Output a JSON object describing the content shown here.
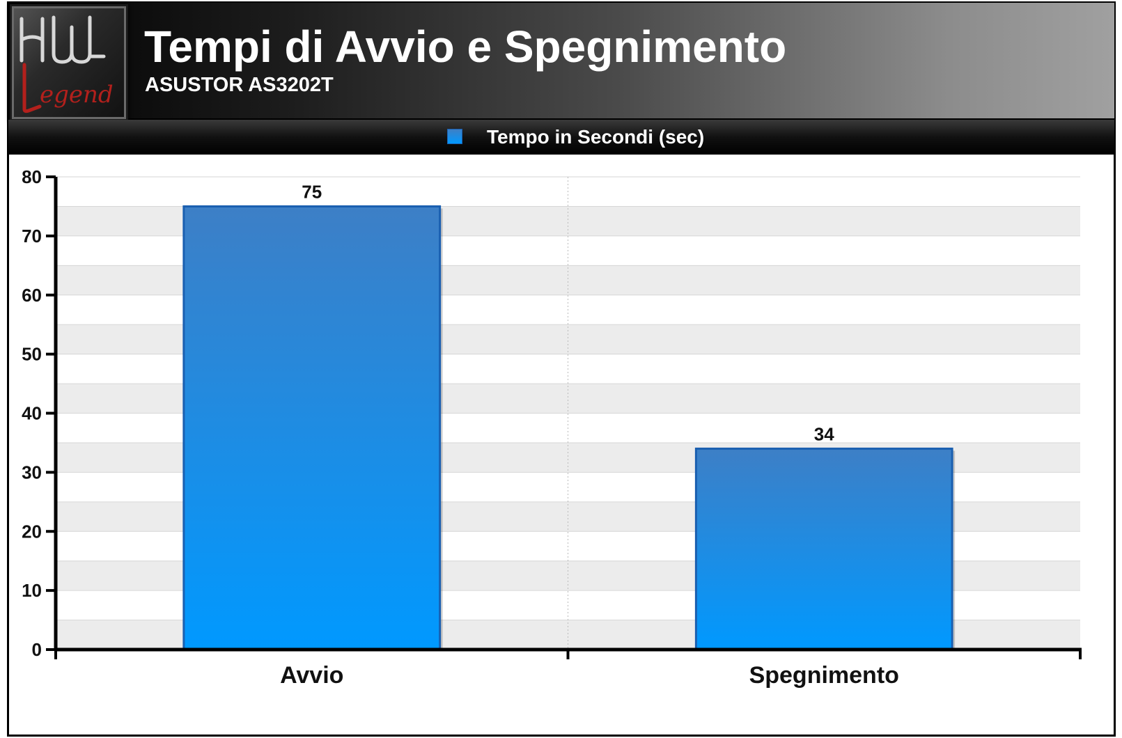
{
  "header": {
    "title": "Tempi di Avvio e Spegnimento",
    "subtitle": "ASUSTOR AS3202T",
    "logo_text": "HW Legend"
  },
  "colors": {
    "bar_top": "#3d7fc6",
    "bar_bottom": "#0099ff",
    "bar_border": "#1a5fb0",
    "band_gray": "#ececec"
  },
  "chart_data": {
    "type": "bar",
    "categories": [
      "Avvio",
      "Spegnimento"
    ],
    "series": [
      {
        "name": "Tempo in Secondi (sec)",
        "values": [
          75,
          34
        ]
      }
    ],
    "data_labels": [
      "75",
      "34"
    ],
    "title": "Tempi di Avvio e Spegnimento",
    "subtitle": "ASUSTOR AS3202T",
    "xlabel": "",
    "ylabel": "",
    "ylim": [
      0,
      80
    ],
    "yticks": [
      0,
      10,
      20,
      30,
      40,
      50,
      60,
      70,
      80
    ],
    "grid": true,
    "legend_position": "top-center"
  }
}
